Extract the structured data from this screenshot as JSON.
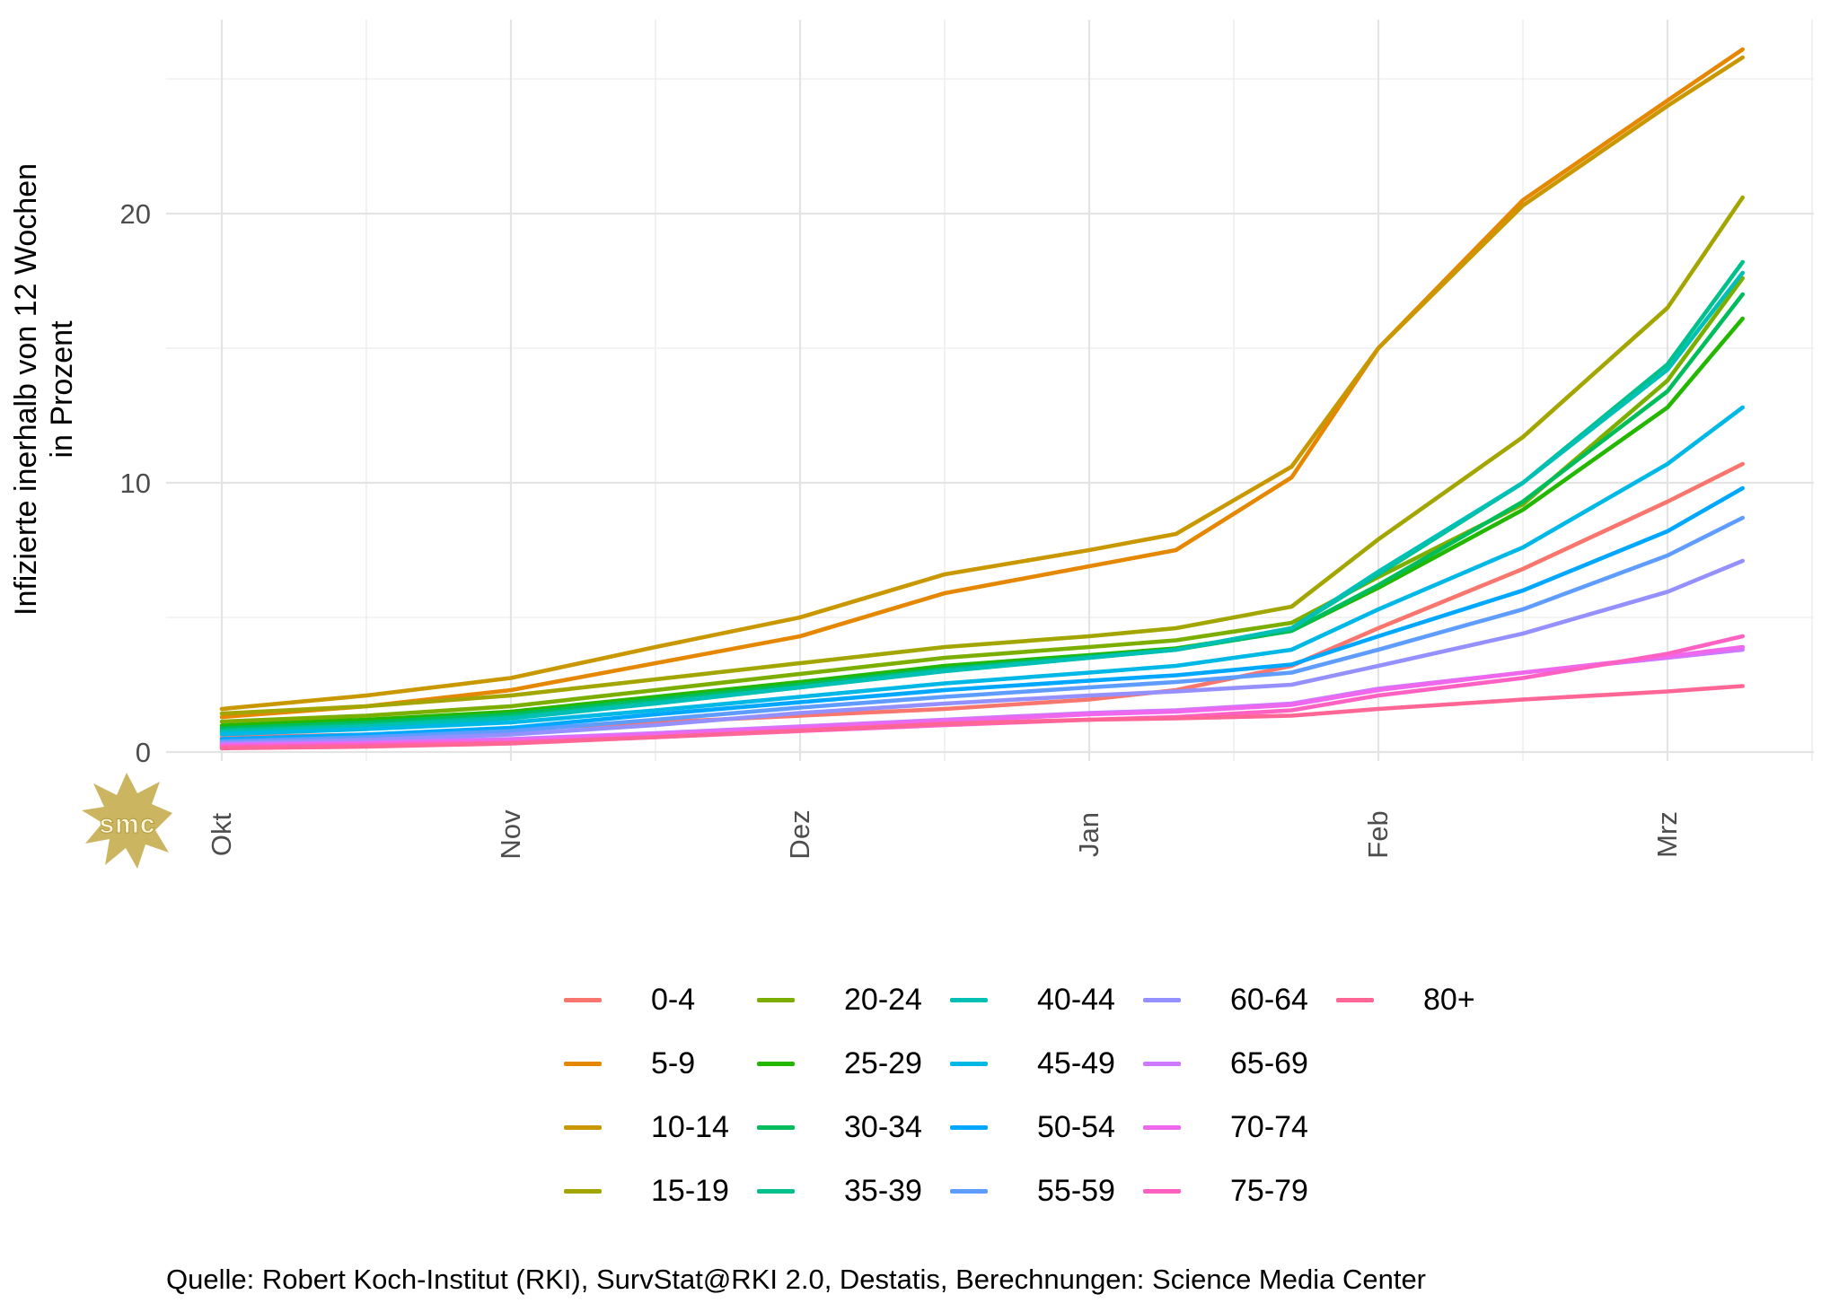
{
  "watermark": "smc",
  "footer": {
    "source_text": "Quelle: Robert Koch-Institut (RKI), SurvStat@RKI 2.0, Destatis, Berechnungen: Science Media Center"
  },
  "chart_data": {
    "type": "line",
    "title": "",
    "ylabel_line1": "Infizierte inerhalb von 12 Wochen",
    "ylabel_line2": "in Prozent",
    "xlabel": "",
    "x_tick_labels": [
      "Okt",
      "Nov",
      "Dez",
      "Jan",
      "Feb",
      "Mrz"
    ],
    "y_major_ticks": [
      0,
      10,
      20
    ],
    "y_minor_ticks": [
      5,
      15,
      25
    ],
    "ylim": [
      0,
      27.2
    ],
    "grid": "on",
    "legend_position": "bottom",
    "legend_columns": 5,
    "x_months": [
      0,
      0.5,
      1,
      1.5,
      2,
      2.5,
      3,
      3.3,
      3.7,
      4,
      4.5,
      5,
      5.26
    ],
    "series": [
      {
        "name": "0-4",
        "color": "#F8766D",
        "values": [
          0.54,
          0.65,
          0.85,
          1.1,
          1.35,
          1.6,
          1.95,
          2.3,
          3.2,
          4.6,
          6.8,
          9.3,
          10.7
        ]
      },
      {
        "name": "5-9",
        "color": "#E58700",
        "values": [
          1.3,
          1.7,
          2.3,
          3.3,
          4.3,
          5.9,
          6.9,
          7.5,
          10.2,
          15.0,
          20.5,
          24.2,
          26.1
        ]
      },
      {
        "name": "10-14",
        "color": "#C99800",
        "values": [
          1.6,
          2.1,
          2.75,
          3.9,
          5.0,
          6.6,
          7.5,
          8.1,
          10.6,
          15.0,
          20.3,
          24.0,
          25.8
        ]
      },
      {
        "name": "15-19",
        "color": "#A3A500",
        "values": [
          1.43,
          1.7,
          2.1,
          2.7,
          3.3,
          3.9,
          4.3,
          4.6,
          5.4,
          7.9,
          11.7,
          16.5,
          20.6
        ]
      },
      {
        "name": "20-24",
        "color": "#7CAE00",
        "values": [
          1.13,
          1.35,
          1.7,
          2.3,
          2.9,
          3.5,
          3.9,
          4.15,
          4.8,
          6.5,
          9.2,
          13.8,
          17.6
        ]
      },
      {
        "name": "25-29",
        "color": "#24B700",
        "values": [
          0.98,
          1.2,
          1.5,
          2.05,
          2.6,
          3.2,
          3.6,
          3.85,
          4.5,
          6.1,
          9.0,
          12.8,
          16.1
        ]
      },
      {
        "name": "30-34",
        "color": "#00BD5C",
        "values": [
          0.88,
          1.1,
          1.4,
          1.95,
          2.5,
          3.1,
          3.55,
          3.8,
          4.5,
          6.2,
          9.3,
          13.4,
          17.0
        ]
      },
      {
        "name": "35-39",
        "color": "#00C08B",
        "values": [
          0.8,
          1.0,
          1.3,
          1.85,
          2.4,
          3.05,
          3.5,
          3.8,
          4.6,
          6.6,
          10.0,
          14.4,
          18.2
        ]
      },
      {
        "name": "40-44",
        "color": "#00C0B5",
        "values": [
          0.74,
          0.95,
          1.25,
          1.8,
          2.4,
          3.0,
          3.5,
          3.8,
          4.6,
          6.7,
          10.0,
          14.2,
          17.8
        ]
      },
      {
        "name": "45-49",
        "color": "#00B8E5",
        "values": [
          0.66,
          0.85,
          1.1,
          1.55,
          2.05,
          2.55,
          2.95,
          3.2,
          3.8,
          5.3,
          7.6,
          10.7,
          12.8
        ]
      },
      {
        "name": "50-54",
        "color": "#00A7FF",
        "values": [
          0.48,
          0.65,
          0.9,
          1.4,
          1.85,
          2.3,
          2.65,
          2.85,
          3.25,
          4.3,
          6.0,
          8.2,
          9.8
        ]
      },
      {
        "name": "55-59",
        "color": "#5E9DFF",
        "values": [
          0.39,
          0.55,
          0.78,
          1.2,
          1.65,
          2.05,
          2.4,
          2.6,
          2.95,
          3.8,
          5.3,
          7.3,
          8.7
        ]
      },
      {
        "name": "60-64",
        "color": "#9590FF",
        "values": [
          0.33,
          0.45,
          0.65,
          1.0,
          1.45,
          1.8,
          2.1,
          2.25,
          2.5,
          3.2,
          4.4,
          5.95,
          7.1
        ]
      },
      {
        "name": "65-69",
        "color": "#CD79FF",
        "values": [
          0.28,
          0.35,
          0.48,
          0.7,
          0.95,
          1.2,
          1.45,
          1.55,
          1.8,
          2.35,
          2.95,
          3.5,
          3.8
        ]
      },
      {
        "name": "70-74",
        "color": "#EF67EC",
        "values": [
          0.25,
          0.32,
          0.44,
          0.65,
          0.9,
          1.15,
          1.4,
          1.5,
          1.75,
          2.3,
          2.95,
          3.55,
          3.9
        ]
      },
      {
        "name": "75-79",
        "color": "#FF61C3",
        "values": [
          0.2,
          0.26,
          0.36,
          0.55,
          0.78,
          1.0,
          1.2,
          1.3,
          1.55,
          2.1,
          2.75,
          3.65,
          4.3
        ]
      },
      {
        "name": "80+",
        "color": "#FF6695",
        "values": [
          0.14,
          0.2,
          0.32,
          0.55,
          0.8,
          1.05,
          1.2,
          1.25,
          1.35,
          1.6,
          1.95,
          2.25,
          2.45
        ]
      }
    ]
  }
}
